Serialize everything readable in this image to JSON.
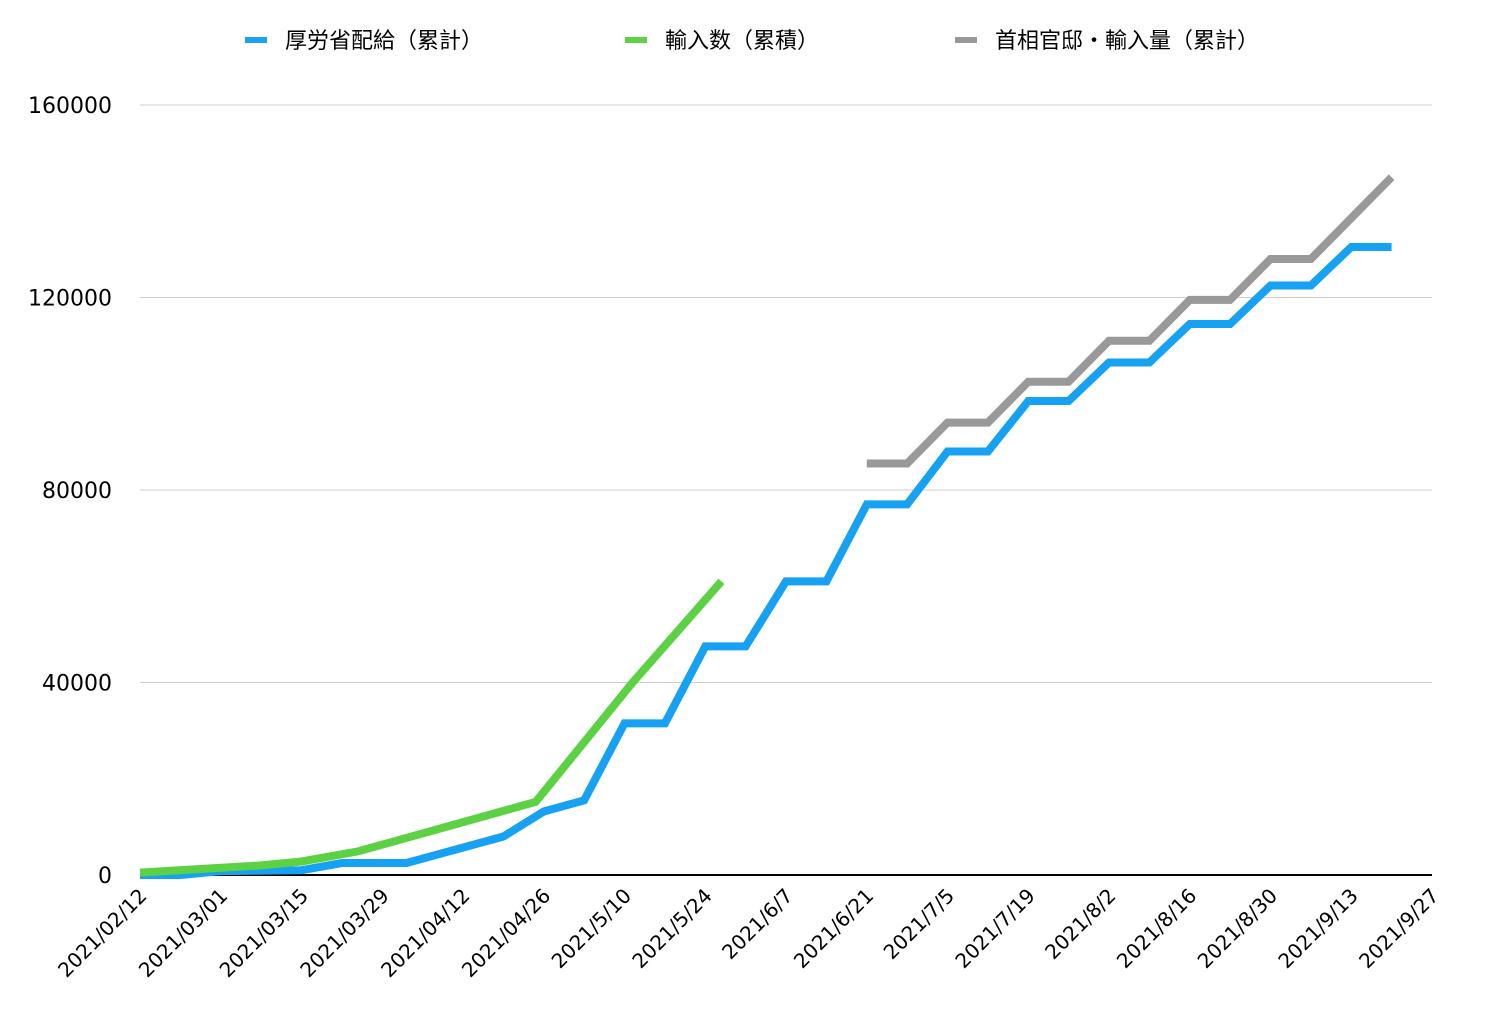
{
  "chart_data": {
    "type": "line",
    "title": "",
    "xlabel": "",
    "ylabel": "",
    "ylim": [
      0,
      160000
    ],
    "yticks": [
      0,
      40000,
      80000,
      120000,
      160000
    ],
    "grid": true,
    "legend_position": "top",
    "x_tick_labels": [
      "2021/02/12",
      "2021/03/01",
      "2021/03/15",
      "2021/03/29",
      "2021/04/12",
      "2021/04/26",
      "2021/5/10",
      "2021/5/24",
      "2021/6/7",
      "2021/6/21",
      "2021/7/5",
      "2021/7/19",
      "2021/8/2",
      "2021/8/16",
      "2021/8/30",
      "2021/9/13",
      "2021/9/27"
    ],
    "series": [
      {
        "name": "厚労省配給（累計）",
        "color": "#16a1f2",
        "points": [
          [
            0,
            0
          ],
          [
            0.5,
            0
          ],
          [
            1,
            800
          ],
          [
            2,
            1000
          ],
          [
            2.5,
            2500
          ],
          [
            3.3,
            2500
          ],
          [
            4.5,
            8000
          ],
          [
            5,
            13200
          ],
          [
            5.5,
            15500
          ],
          [
            6,
            31500
          ],
          [
            6.5,
            31500
          ],
          [
            7,
            47500
          ],
          [
            7.5,
            47500
          ],
          [
            8,
            61000
          ],
          [
            8.5,
            61000
          ],
          [
            9,
            77000
          ],
          [
            9.5,
            77000
          ],
          [
            10,
            88000
          ],
          [
            10.5,
            88000
          ],
          [
            11,
            98500
          ],
          [
            11.5,
            98500
          ],
          [
            12,
            106500
          ],
          [
            12.5,
            106500
          ],
          [
            13,
            114500
          ],
          [
            13.5,
            114500
          ],
          [
            14,
            122500
          ],
          [
            14.5,
            122500
          ],
          [
            15,
            130500
          ],
          [
            15.5,
            130500
          ]
        ]
      },
      {
        "name": "輸入数（累積）",
        "color": "#5cd144",
        "points": [
          [
            0,
            500
          ],
          [
            1,
            1500
          ],
          [
            1.5,
            2000
          ],
          [
            2,
            2800
          ],
          [
            2.7,
            4900
          ],
          [
            4.9,
            15200
          ],
          [
            6.1,
            40000
          ],
          [
            7.2,
            61000
          ]
        ]
      },
      {
        "name": "首相官邸・輸入量（累計）",
        "color": "#999999",
        "points": [
          [
            9,
            85500
          ],
          [
            9.5,
            85500
          ],
          [
            10,
            94000
          ],
          [
            10.5,
            94000
          ],
          [
            11,
            102500
          ],
          [
            11.5,
            102500
          ],
          [
            12,
            111000
          ],
          [
            12.5,
            111000
          ],
          [
            13,
            119500
          ],
          [
            13.5,
            119500
          ],
          [
            14,
            128000
          ],
          [
            14.5,
            128000
          ],
          [
            15,
            136500
          ],
          [
            15.5,
            145000
          ]
        ]
      }
    ]
  }
}
